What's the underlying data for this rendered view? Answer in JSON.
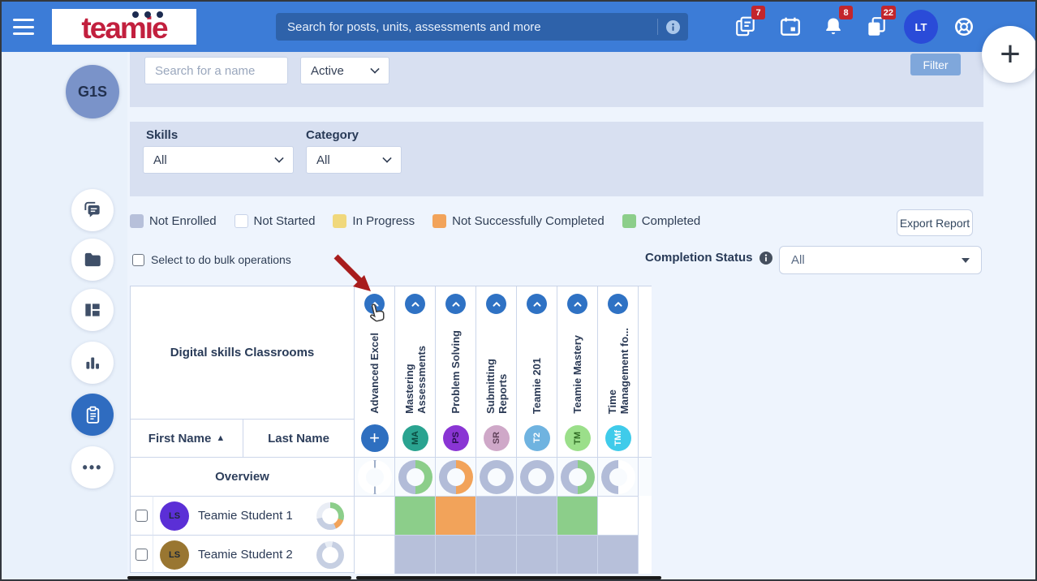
{
  "navbar": {
    "logo_text": "teamie",
    "search_placeholder": "Search for posts, units, assessments and more",
    "posts_badge": "7",
    "notifications_badge": "8",
    "collection_badge": "22",
    "user_initials": "LT"
  },
  "fab_label": "+",
  "sidebar": {
    "group_initials": "G1S"
  },
  "filter_bar": {
    "name_placeholder": "Search for a name",
    "status_value": "Active",
    "filter_label": "Filter"
  },
  "skills_panel": {
    "skills_label": "Skills",
    "skills_value": "All",
    "category_label": "Category",
    "category_value": "All"
  },
  "legend": {
    "items": [
      {
        "label": "Not Enrolled",
        "color": "#b7c0da",
        "border": ""
      },
      {
        "label": "Not Started",
        "color": "#ffffff",
        "border": "#c8d3e8"
      },
      {
        "label": "In Progress",
        "color": "#f0d87c",
        "border": ""
      },
      {
        "label": "Not Successfully Completed",
        "color": "#f2a35a",
        "border": ""
      },
      {
        "label": "Completed",
        "color": "#8cce8a",
        "border": ""
      }
    ]
  },
  "toolbar": {
    "export_label": "Export Report",
    "bulk_label": "Select to do bulk operations",
    "completion_label": "Completion Status",
    "completion_value": "All"
  },
  "table": {
    "title": "Digital skills Classrooms",
    "first_name_header": "First Name",
    "sort_icon": "▲",
    "last_name_header": "Last Name",
    "overview_label": "Overview",
    "status_colors": {
      "not_enrolled": "#b7c0da",
      "not_started": "#ffffff",
      "in_progress": "#f0d87c",
      "not_successful": "#f2a35a",
      "completed": "#8cce8a"
    },
    "courses": [
      {
        "name": "Advanced Excel",
        "lines": [
          "Advanced Excel"
        ],
        "avatar_text": "+",
        "avatar_bg": "#2e6fc0",
        "avatar_fg": "#ffffff",
        "overview_segments": [
          [
            "#9fafc9",
            1
          ],
          [
            "#ffffff",
            48
          ],
          [
            "#9fafc9",
            2
          ],
          [
            "#ffffff",
            48
          ],
          [
            "#9fafc9",
            1
          ]
        ]
      },
      {
        "name": "Mastering Assessments",
        "lines": [
          "Mastering",
          "Assessments"
        ],
        "avatar_text": "MA",
        "avatar_bg": "#2aa390",
        "avatar_fg": "#0b4a40",
        "overview_segments": [
          [
            "#8cce8a",
            50
          ],
          [
            "#b2bcd8",
            50
          ]
        ]
      },
      {
        "name": "Problem Solving",
        "lines": [
          "Problem Solving"
        ],
        "avatar_text": "PS",
        "avatar_bg": "#8a35d4",
        "avatar_fg": "#2a0f52",
        "overview_segments": [
          [
            "#f2a35a",
            50
          ],
          [
            "#b2bcd8",
            50
          ]
        ]
      },
      {
        "name": "Submitting Reports",
        "lines": [
          "Submitting",
          "Reports"
        ],
        "avatar_text": "SR",
        "avatar_bg": "#cfa8c8",
        "avatar_fg": "#5f4159",
        "overview_segments": [
          [
            "#b2bcd8",
            100
          ]
        ]
      },
      {
        "name": "Teamie 201",
        "lines": [
          "Teamie 201"
        ],
        "avatar_text": "T2",
        "avatar_bg": "#6fb3e0",
        "avatar_fg": "#ffffff",
        "overview_segments": [
          [
            "#b2bcd8",
            100
          ]
        ]
      },
      {
        "name": "Teamie Mastery",
        "lines": [
          "Teamie Mastery"
        ],
        "avatar_text": "TM",
        "avatar_bg": "#9bdf8a",
        "avatar_fg": "#2f6b24",
        "overview_segments": [
          [
            "#8cce8a",
            50
          ],
          [
            "#b2bcd8",
            50
          ]
        ]
      },
      {
        "name": "Time Management fo...",
        "lines": [
          "Time",
          "Management fo..."
        ],
        "avatar_text": "TMf",
        "avatar_bg": "#3fcbea",
        "avatar_fg": "#ffffff",
        "overview_segments": [
          [
            "#ffffff",
            50
          ],
          [
            "#b2bcd8",
            50
          ]
        ]
      }
    ],
    "students": [
      {
        "name": "Teamie Student 1",
        "avatar_text": "LS",
        "avatar_bg": "#5b2fd6",
        "avatar_fg": "#1f2937",
        "donut_segments": [
          [
            "#8cce8a",
            30
          ],
          [
            "#f2a35a",
            13
          ],
          [
            "#c6cfe2",
            29
          ],
          [
            "#e9edf5",
            28
          ]
        ],
        "statuses": [
          "not_started",
          "completed",
          "not_successful",
          "not_enrolled",
          "not_enrolled",
          "completed",
          "not_started"
        ]
      },
      {
        "name": "Teamie Student 2",
        "avatar_text": "LS",
        "avatar_bg": "#997631",
        "avatar_fg": "#1f2937",
        "donut_segments": [
          [
            "#e8edf5",
            3
          ],
          [
            "#c6cfe2",
            90
          ],
          [
            "#e8edf5",
            7
          ]
        ],
        "statuses": [
          "not_started",
          "not_enrolled",
          "not_enrolled",
          "not_enrolled",
          "not_enrolled",
          "not_enrolled",
          "not_enrolled"
        ]
      }
    ]
  }
}
